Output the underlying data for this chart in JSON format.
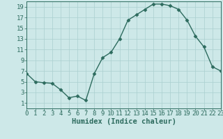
{
  "x": [
    0,
    1,
    2,
    3,
    4,
    5,
    6,
    7,
    8,
    9,
    10,
    11,
    12,
    13,
    14,
    15,
    16,
    17,
    18,
    19,
    20,
    21,
    22,
    23
  ],
  "y": [
    6.5,
    5.0,
    4.8,
    4.7,
    3.5,
    2.0,
    2.3,
    1.5,
    6.5,
    9.5,
    10.5,
    13.0,
    16.5,
    17.5,
    18.5,
    19.5,
    19.5,
    19.2,
    18.5,
    16.5,
    13.5,
    11.5,
    7.8,
    7.0
  ],
  "xlabel": "Humidex (Indice chaleur)",
  "xlim": [
    0,
    23
  ],
  "ylim": [
    0,
    20
  ],
  "yticks": [
    1,
    3,
    5,
    7,
    9,
    11,
    13,
    15,
    17,
    19
  ],
  "xticks": [
    0,
    1,
    2,
    3,
    4,
    5,
    6,
    7,
    8,
    9,
    10,
    11,
    12,
    13,
    14,
    15,
    16,
    17,
    18,
    19,
    20,
    21,
    22,
    23
  ],
  "line_color": "#2d6b5e",
  "marker": "D",
  "marker_size": 2.5,
  "bg_color": "#cde8e8",
  "grid_color": "#aacfcf",
  "xlabel_fontsize": 7.5,
  "tick_fontsize": 6.5,
  "line_width": 1.0
}
